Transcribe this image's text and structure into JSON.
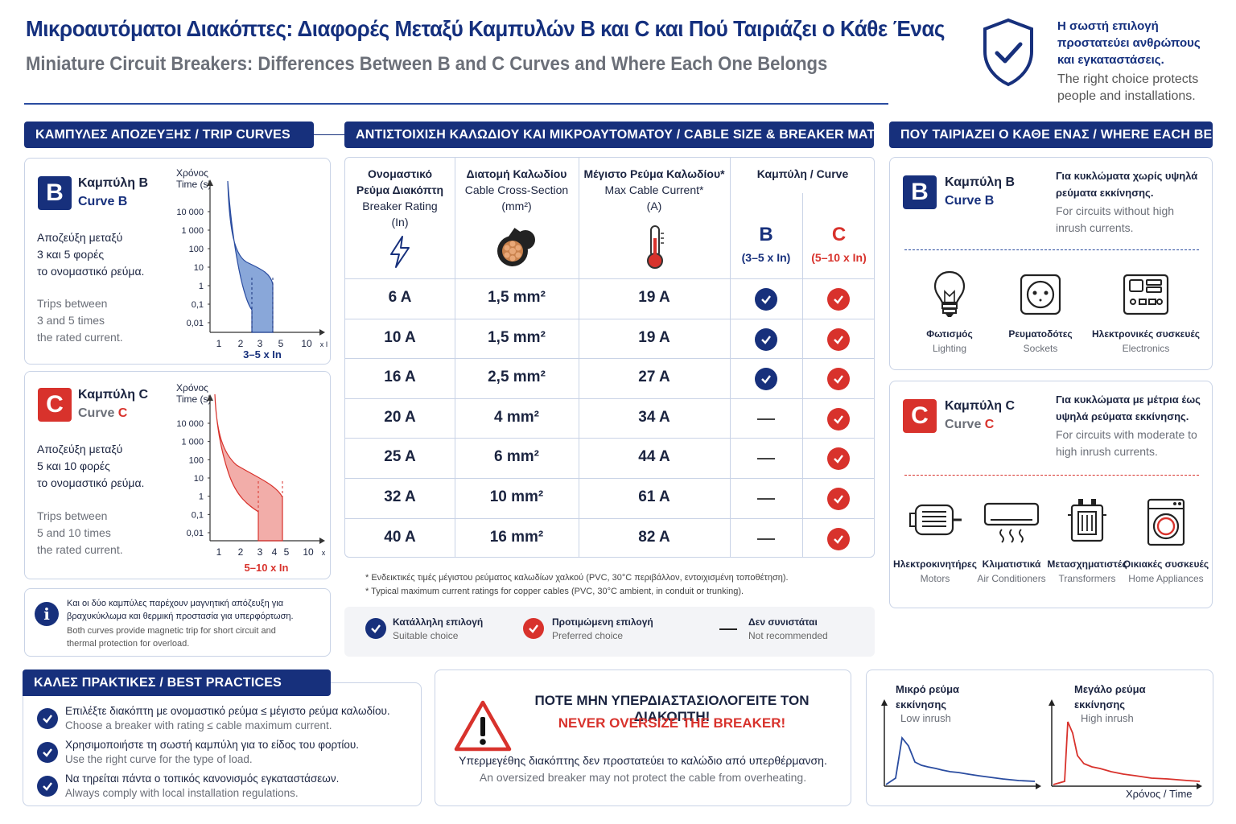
{
  "header": {
    "title_gr": "Μικροαυτόματοι Διακόπτες: Διαφορές Μεταξύ Καμπυλών B και C και Πού Ταιριάζει ο Κάθε Ένας",
    "title_en": "Miniature Circuit Breakers: Differences Between B and C Curves and Where Each One Belongs",
    "protect_gr": "Η σωστή επιλογή προστατεύει ανθρώπους και εγκαταστάσεις.",
    "protect_en": "The right choice protects people and installations."
  },
  "colors": {
    "navy": "#17307c",
    "red": "#d8322c",
    "blue_fill": "#4a78c4",
    "red_fill": "#e86a63"
  },
  "trip": {
    "band": "ΚΑΜΠΥΛΕΣ ΑΠΟΖΕΥΞΗΣ / TRIP CURVES",
    "b": {
      "badge": "B",
      "title_gr": "Καμπύλη B",
      "title_en": "Curve B",
      "desc_gr": [
        "Αποζεύξη μεταξύ",
        "3 και 5 φορές",
        "το ονομαστικό ρεύμα."
      ],
      "desc_en": [
        "Trips between",
        "3 and 5 times",
        "the rated current."
      ],
      "axis_title": [
        "Χρόνος",
        "Time (s)"
      ],
      "range": "3–5 x In",
      "yticks": [
        "10 000",
        "1 000",
        "100",
        "10",
        "1",
        "0,1",
        "0,01"
      ],
      "xticks": [
        "1",
        "2",
        "3",
        "5",
        "10"
      ],
      "xunit": "x In"
    },
    "c": {
      "badge": "C",
      "title_gr": "Καμπύλη C",
      "title_en": "Curve C",
      "desc_gr": [
        "Αποζεύξη μεταξύ",
        "5 και 10 φορές",
        "το ονομαστικό ρεύμα."
      ],
      "desc_en": [
        "Trips between",
        "5 and 10 times",
        "the rated current."
      ],
      "axis_title": [
        "Χρόνος",
        "Time (s)"
      ],
      "range": "5–10 x In",
      "yticks": [
        "10 000",
        "1 000",
        "100",
        "10",
        "1",
        "0,1",
        "0,01"
      ],
      "xticks": [
        "1",
        "2",
        "3",
        "4",
        "5",
        "10"
      ],
      "xunit": "x In"
    },
    "info_gr": "Και οι δύο καμπύλες παρέχουν μαγνητική απόζευξη για βραχυκύκλωμα και θερμική προστασία για υπερφόρτωση.",
    "info_en": "Both curves provide magnetic trip for short circuit and thermal protection for overload."
  },
  "table": {
    "band": "ΑΝΤΙΣΤΟΙΧΙΣΗ ΚΑΛΩΔΙΟΥ ΚΑΙ ΜΙΚΡΟΑΥΤΟΜΑΤΟΥ / CABLE SIZE & BREAKER MATCHING",
    "headers": {
      "rating": [
        "Ονομαστικό",
        "Ρεύμα Διακόπτη",
        "Breaker Rating",
        "(In)"
      ],
      "section": [
        "Διατομή Καλωδίου",
        "Cable Cross-Section",
        "(mm²)"
      ],
      "max": [
        "Μέγιστο Ρεύμα Καλωδίου*",
        "Max Cable Current*",
        "(A)"
      ],
      "curve": "Καμπύλη / Curve",
      "b": "B",
      "b_range": "(3–5 x In)",
      "c": "C",
      "c_range": "(5–10 x In)"
    },
    "rows": [
      {
        "rating": "6 A",
        "section": "1,5 mm²",
        "max": "19 A",
        "b": "check",
        "c": "check"
      },
      {
        "rating": "10 A",
        "section": "1,5 mm²",
        "max": "19 A",
        "b": "check",
        "c": "check"
      },
      {
        "rating": "16 A",
        "section": "2,5 mm²",
        "max": "27 A",
        "b": "check",
        "c": "check"
      },
      {
        "rating": "20 A",
        "section": "4 mm²",
        "max": "34 A",
        "b": "dash",
        "c": "check"
      },
      {
        "rating": "25 A",
        "section": "6 mm²",
        "max": "44 A",
        "b": "dash",
        "c": "check"
      },
      {
        "rating": "32 A",
        "section": "10 mm²",
        "max": "61 A",
        "b": "dash",
        "c": "check"
      },
      {
        "rating": "40 A",
        "section": "16 mm²",
        "max": "82 A",
        "b": "dash",
        "c": "check"
      }
    ],
    "note_gr": "* Ενδεικτικές τιμές μέγιστου ρεύματος καλωδίων χαλκού (PVC, 30°C περιβάλλον, εντοιχισμένη τοποθέτηση).",
    "note_en": "* Typical maximum current ratings for copper cables (PVC, 30°C ambient, in conduit or trunking).",
    "legend": {
      "suitable_gr": "Κατάλληλη επιλογή",
      "suitable_en": "Suitable choice",
      "preferred_gr": "Προτιμώμενη επιλογή",
      "preferred_en": "Preferred choice",
      "notrec_gr": "Δεν συνιστάται",
      "notrec_en": "Not recommended"
    }
  },
  "where": {
    "band": "ΠΟΥ ΤΑΙΡΙΑΖΕΙ Ο ΚΑΘΕ ΕΝΑΣ / WHERE EACH BELONGS",
    "b": {
      "badge": "B",
      "title_gr": "Καμπύλη B",
      "title_en": "Curve B",
      "desc_gr": "Για κυκλώματα χωρίς υψηλά ρεύματα εκκίνησης.",
      "desc_en": "For circuits without high inrush currents.",
      "items": [
        {
          "gr": "Φωτισμός",
          "en": "Lighting",
          "icon": "bulb-icon"
        },
        {
          "gr": "Ρευματοδότες",
          "en": "Sockets",
          "icon": "socket-icon"
        },
        {
          "gr": "Ηλεκτρονικές συσκευές",
          "en": "Electronics",
          "icon": "electronics-icon"
        }
      ]
    },
    "c": {
      "badge": "C",
      "title_gr": "Καμπύλη C",
      "title_en": "Curve C",
      "desc_gr": "Για κυκλώματα με μέτρια έως υψηλά ρεύματα εκκίνησης.",
      "desc_en": "For circuits with moderate to high inrush currents.",
      "items": [
        {
          "gr": "Ηλεκτροκινητήρες",
          "en": "Motors",
          "icon": "motor-icon"
        },
        {
          "gr": "Κλιματιστικά",
          "en": "Air Conditioners",
          "icon": "ac-icon"
        },
        {
          "gr": "Μετασχηματιστές",
          "en": "Transformers",
          "icon": "transformer-icon"
        },
        {
          "gr": "Οικιακές συσκευές",
          "en": "Home Appliances",
          "icon": "washer-icon"
        }
      ]
    }
  },
  "best": {
    "band": "ΚΑΛΕΣ ΠΡΑΚΤΙΚΕΣ / BEST PRACTICES",
    "items": [
      {
        "gr": "Επιλέξτε διακόπτη με ονομαστικό ρεύμα ≤ μέγιστο ρεύμα καλωδίου.",
        "en": "Choose a breaker with rating ≤ cable maximum current."
      },
      {
        "gr": "Χρησιμοποιήστε τη σωστή καμπύλη για το είδος του φορτίου.",
        "en": "Use the right curve for the type of load."
      },
      {
        "gr": "Να τηρείται πάντα ο τοπικός κανονισμός εγκαταστάσεων.",
        "en": "Always comply with local installation regulations."
      }
    ]
  },
  "warning": {
    "title_gr": "ΠΟΤΕ ΜΗΝ ΥΠΕΡΔΙΑΣΤΑΣΙΟΛΟΓΕΙΤΕ ΤΟΝ ΔΙΑΚΟΠΤΗ!",
    "title_en": "NEVER OVERSIZE THE BREAKER!",
    "body_gr": "Υπερμεγέθης διακόπτης δεν προστατεύει το καλώδιο από υπερθέρμανση.",
    "body_en": "An oversized breaker may not protect the cable from overheating."
  },
  "inrush": {
    "low_gr": [
      "Μικρό ρεύμα",
      "εκκίνησης"
    ],
    "low_en": "Low inrush",
    "high_gr": [
      "Μεγάλο ρεύμα",
      "εκκίνησης"
    ],
    "high_en": "High inrush",
    "time": "Χρόνος / Time"
  }
}
